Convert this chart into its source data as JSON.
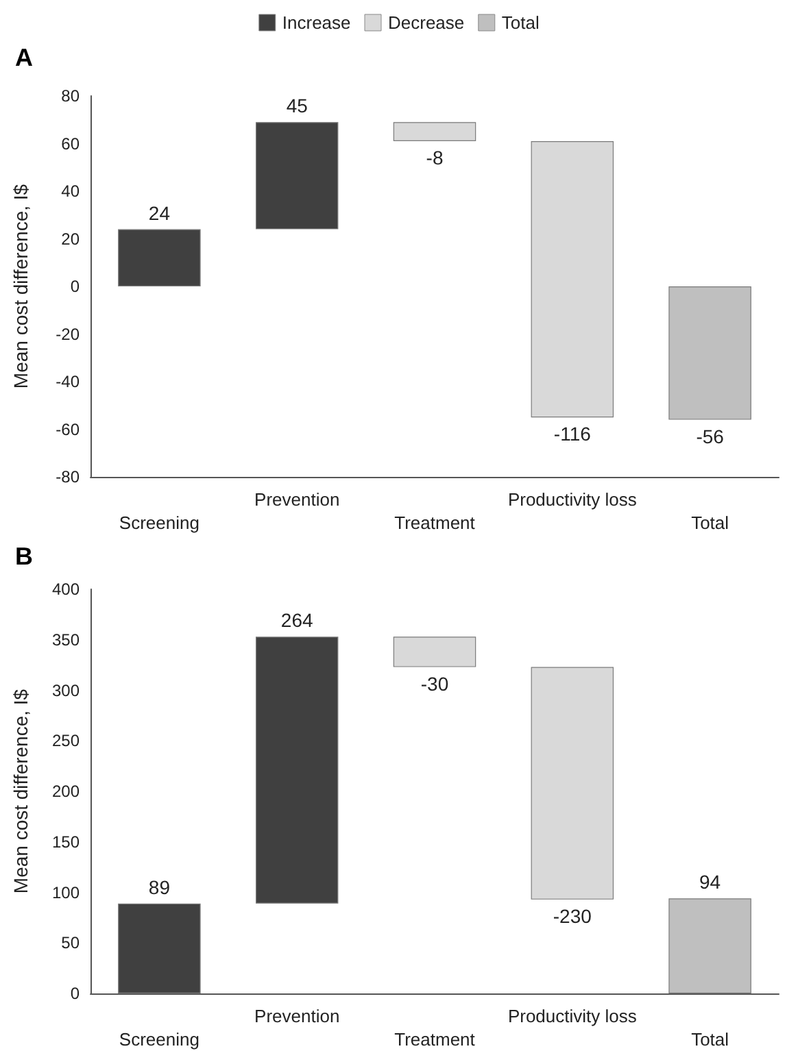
{
  "chart_data": [
    {
      "type": "bar",
      "title": "A",
      "ylabel": "Mean cost difference, I$",
      "categories": [
        "Screening",
        "Prevention",
        "Treatment",
        "Productivity loss",
        "Total"
      ],
      "series": [
        {
          "name": "Increase",
          "color": "#404040",
          "values": [
            24,
            45,
            null,
            null,
            null
          ],
          "base": [
            0,
            24,
            null,
            null,
            null
          ]
        },
        {
          "name": "Decrease",
          "color": "#d9d9d9",
          "values": [
            null,
            null,
            -8,
            -116,
            null
          ],
          "base": [
            null,
            null,
            69,
            61,
            null
          ]
        },
        {
          "name": "Total",
          "color": "#bfbfbf",
          "values": [
            null,
            null,
            null,
            null,
            -56
          ],
          "base": [
            null,
            null,
            null,
            null,
            0
          ]
        }
      ],
      "ylim": [
        -80,
        80
      ],
      "yticks": [
        -80,
        -60,
        -40,
        -20,
        0,
        20,
        40,
        60,
        80
      ],
      "data_labels": true,
      "legend": "top",
      "grid": false
    },
    {
      "type": "bar",
      "title": "B",
      "ylabel": "Mean cost difference, I$",
      "categories": [
        "Screening",
        "Prevention",
        "Treatment",
        "Productivity loss",
        "Total"
      ],
      "series": [
        {
          "color": "#404040",
          "values": [
            89,
            264,
            null,
            null,
            null
          ],
          "base": [
            0,
            89,
            null,
            null,
            null
          ]
        },
        {
          "color": "#d9d9d9",
          "values": [
            null,
            null,
            -30,
            -230,
            null
          ],
          "base": [
            null,
            null,
            353,
            323,
            null
          ]
        },
        {
          "color": "#bfbfbf",
          "values": [
            null,
            null,
            null,
            null,
            94
          ],
          "base": [
            null,
            null,
            null,
            null,
            0
          ]
        }
      ],
      "ylim": [
        0,
        400
      ],
      "yticks": [
        0,
        50,
        100,
        150,
        200,
        250,
        300,
        350,
        400
      ],
      "data_labels": true,
      "legend": false,
      "grid": false
    }
  ]
}
